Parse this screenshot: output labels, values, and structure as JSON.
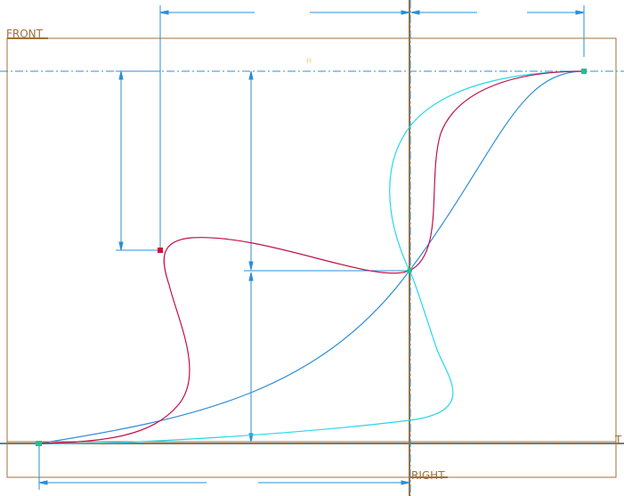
{
  "planes": {
    "front_label": "FRONT",
    "right_label": "RIGHT",
    "top_label": "T",
    "h_label": "H"
  },
  "colors": {
    "plane_frame": "#a0703a",
    "datum_axis": "#2a8fd8",
    "dimension": "#2a8fd8",
    "spline_crimson": "#c0104a",
    "spline_cyan": "#25d8e8",
    "spline_blue": "#2f8ed8",
    "point_green": "#20c090",
    "point_red": "#d01030",
    "background": "#ffffff"
  },
  "sketch": {
    "splines": [
      {
        "name": "crimson-spline",
        "color_key": "spline_crimson"
      },
      {
        "name": "cyan-spline",
        "color_key": "spline_cyan"
      },
      {
        "name": "blue-spline",
        "color_key": "spline_blue"
      }
    ],
    "points": [
      {
        "name": "start-point",
        "color_key": "point_green"
      },
      {
        "name": "mid-point",
        "color_key": "point_green"
      },
      {
        "name": "end-point",
        "color_key": "point_green"
      },
      {
        "name": "control-point",
        "color_key": "point_red"
      }
    ]
  }
}
